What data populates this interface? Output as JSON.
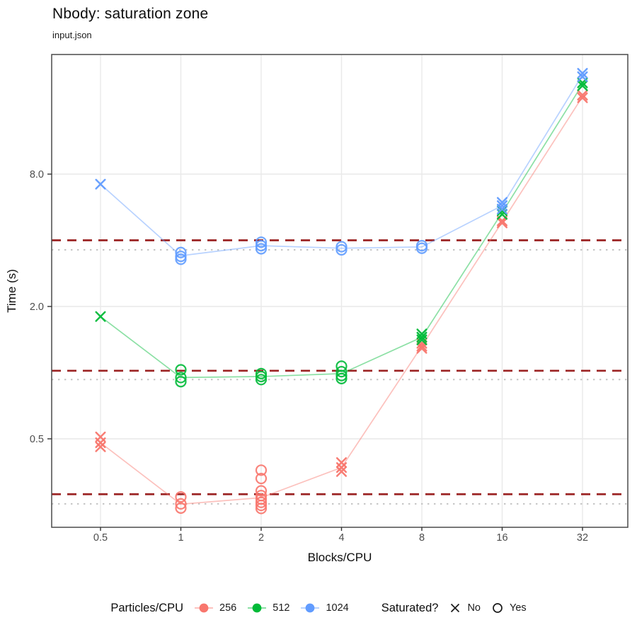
{
  "chart_data": {
    "type": "scatter",
    "title": "Nbody: saturation zone",
    "subtitle": "input.json",
    "xlabel": "Blocks/CPU",
    "ylabel": "Time (s)",
    "x_scale": "log2",
    "y_scale": "log2",
    "x_ticks": [
      0.5,
      1,
      2,
      4,
      8,
      16,
      32
    ],
    "x_tick_labels": [
      "0.5",
      "1",
      "2",
      "4",
      "8",
      "16",
      "32"
    ],
    "y_ticks": [
      0.5,
      2,
      8
    ],
    "y_tick_labels": [
      "0.5",
      "2.0",
      "8.0"
    ],
    "x_range": [
      0.33,
      47
    ],
    "y_range": [
      0.2,
      28
    ],
    "grid": "major",
    "legend_position": "bottom",
    "legend": {
      "color": {
        "title": "Particles/CPU",
        "entries": [
          "256",
          "512",
          "1024"
        ]
      },
      "shape": {
        "title": "Saturated?",
        "entries": [
          {
            "glyph": "x",
            "label": "No"
          },
          {
            "glyph": "circle",
            "label": "Yes"
          }
        ]
      }
    },
    "colors": {
      "256": "#F8766D",
      "512": "#00BA38",
      "1024": "#619CFF",
      "ref_dashed": "#9B2323",
      "ref_dotted": "#C4C4C4",
      "grid": "#E9E9E9",
      "panel_border": "#4A4A4A",
      "tick_label": "#4D4D4D"
    },
    "ref_lines": [
      {
        "group": "1024",
        "dashed": 4.0,
        "dotted": 3.62
      },
      {
        "group": "512",
        "dashed": 1.02,
        "dotted": 0.93
      },
      {
        "group": "256",
        "dashed": 0.28,
        "dotted": 0.253
      }
    ],
    "series": [
      {
        "name": "256",
        "color": "#F8766D",
        "line": [
          [
            0.5,
            0.48
          ],
          [
            1,
            0.252
          ],
          [
            2,
            0.27
          ],
          [
            4,
            0.37
          ],
          [
            8,
            1.32
          ],
          [
            16,
            4.85
          ],
          [
            32,
            18.0
          ]
        ],
        "points": [
          [
            0.5,
            0.51,
            "no"
          ],
          [
            0.5,
            0.48,
            "no"
          ],
          [
            0.5,
            0.46,
            "no"
          ],
          [
            1,
            0.272,
            "yes"
          ],
          [
            1,
            0.253,
            "yes"
          ],
          [
            1,
            0.242,
            "yes"
          ],
          [
            2,
            0.36,
            "yes"
          ],
          [
            2,
            0.33,
            "yes"
          ],
          [
            2,
            0.29,
            "yes"
          ],
          [
            2,
            0.276,
            "yes"
          ],
          [
            2,
            0.266,
            "yes"
          ],
          [
            2,
            0.257,
            "yes"
          ],
          [
            2,
            0.249,
            "yes"
          ],
          [
            2,
            0.241,
            "yes"
          ],
          [
            4,
            0.39,
            "no"
          ],
          [
            4,
            0.37,
            "no"
          ],
          [
            4,
            0.355,
            "no"
          ],
          [
            8,
            1.36,
            "no"
          ],
          [
            8,
            1.32,
            "no"
          ],
          [
            8,
            1.29,
            "no"
          ],
          [
            16,
            4.9,
            "no"
          ],
          [
            16,
            4.8,
            "no"
          ],
          [
            32,
            18.3,
            "no"
          ],
          [
            32,
            17.8,
            "no"
          ]
        ]
      },
      {
        "name": "512",
        "color": "#00BA38",
        "line": [
          [
            0.5,
            1.8
          ],
          [
            1,
            0.95
          ],
          [
            2,
            0.96
          ],
          [
            4,
            0.99
          ],
          [
            8,
            1.45
          ],
          [
            16,
            5.35
          ],
          [
            32,
            20.5
          ]
        ],
        "points": [
          [
            0.5,
            1.8,
            "no"
          ],
          [
            1,
            1.03,
            "yes"
          ],
          [
            1,
            0.95,
            "yes"
          ],
          [
            1,
            0.91,
            "yes"
          ],
          [
            2,
            0.99,
            "yes"
          ],
          [
            2,
            0.96,
            "yes"
          ],
          [
            2,
            0.93,
            "yes"
          ],
          [
            4,
            1.07,
            "yes"
          ],
          [
            4,
            1.01,
            "yes"
          ],
          [
            4,
            0.97,
            "yes"
          ],
          [
            4,
            0.94,
            "yes"
          ],
          [
            8,
            1.5,
            "no"
          ],
          [
            8,
            1.45,
            "no"
          ],
          [
            8,
            1.41,
            "no"
          ],
          [
            16,
            5.45,
            "no"
          ],
          [
            16,
            5.25,
            "no"
          ],
          [
            32,
            20.8,
            "no"
          ],
          [
            32,
            20.2,
            "no"
          ]
        ]
      },
      {
        "name": "1024",
        "color": "#619CFF",
        "line": [
          [
            0.5,
            7.2
          ],
          [
            1,
            3.4
          ],
          [
            2,
            3.78
          ],
          [
            4,
            3.68
          ],
          [
            8,
            3.73
          ],
          [
            16,
            5.75
          ],
          [
            32,
            22.6
          ]
        ],
        "points": [
          [
            0.5,
            7.2,
            "no"
          ],
          [
            1,
            3.52,
            "yes"
          ],
          [
            1,
            3.38,
            "yes"
          ],
          [
            1,
            3.28,
            "yes"
          ],
          [
            2,
            3.92,
            "yes"
          ],
          [
            2,
            3.78,
            "yes"
          ],
          [
            2,
            3.66,
            "yes"
          ],
          [
            4,
            3.74,
            "yes"
          ],
          [
            4,
            3.62,
            "yes"
          ],
          [
            8,
            3.78,
            "yes"
          ],
          [
            8,
            3.68,
            "yes"
          ],
          [
            16,
            5.95,
            "no"
          ],
          [
            16,
            5.75,
            "no"
          ],
          [
            16,
            5.55,
            "no"
          ],
          [
            32,
            23.0,
            "no"
          ],
          [
            32,
            22.2,
            "no"
          ]
        ]
      }
    ]
  }
}
